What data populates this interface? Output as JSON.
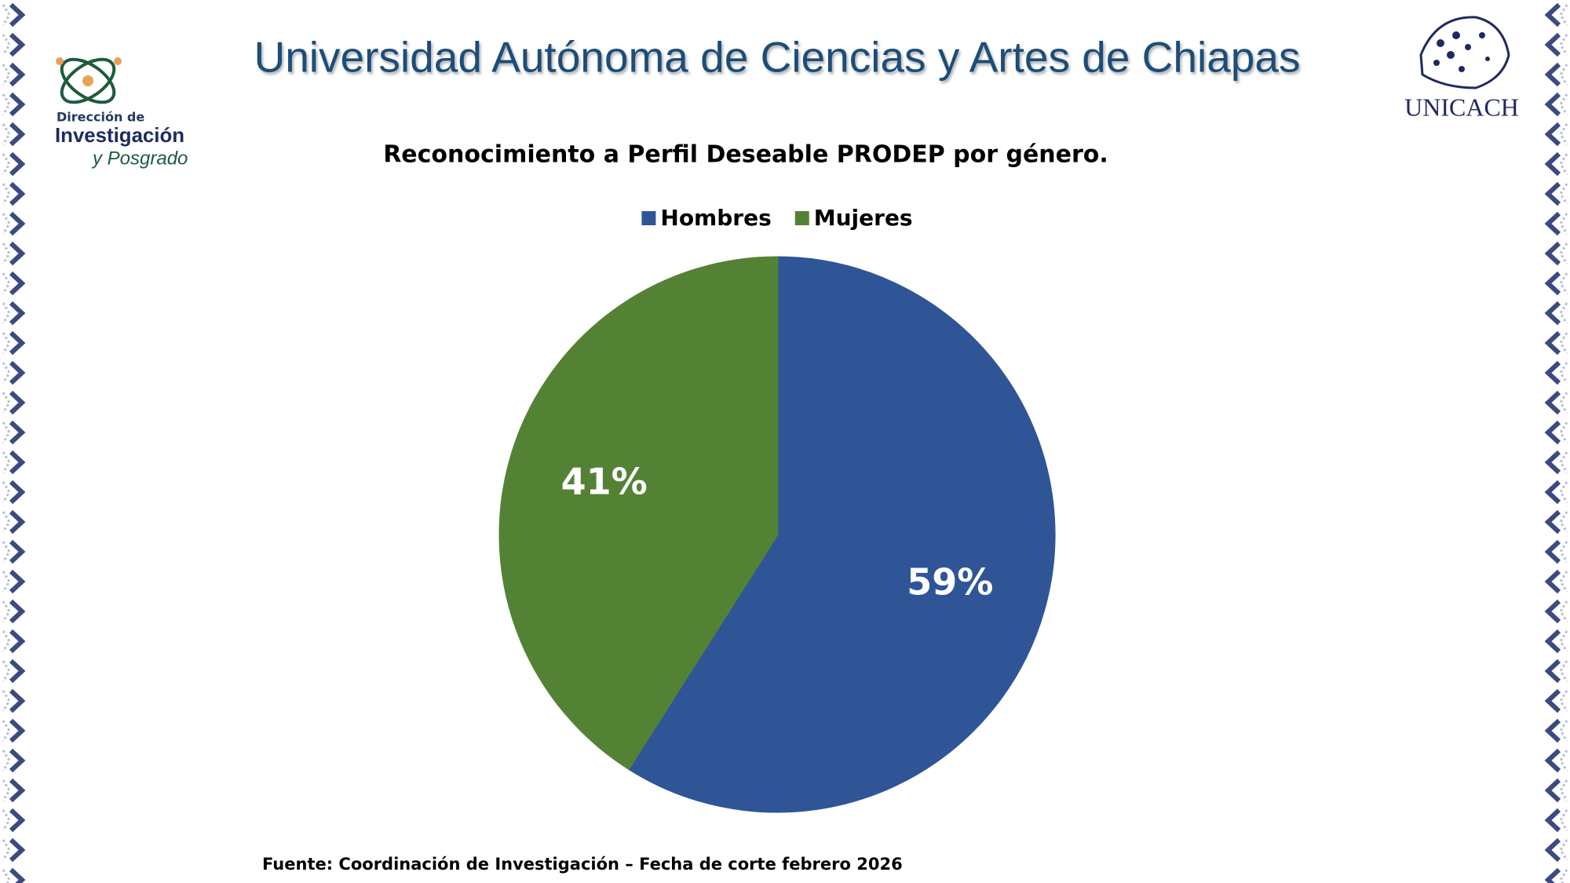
{
  "header": {
    "title": "Universidad Autónoma de Ciencias y Artes de Chiapas",
    "left_logo": {
      "line1": "Dirección de",
      "line2": "Investigación",
      "line3": "y Posgrado"
    },
    "right_logo": "UNICACH"
  },
  "chart_data": {
    "type": "pie",
    "title": "Reconocimiento a Perfil Deseable PRODEP por género.",
    "categories": [
      "Hombres",
      "Mujeres"
    ],
    "values": [
      59,
      41
    ],
    "value_labels": [
      "59%",
      "41%"
    ],
    "colors": [
      "#2f5597",
      "#548235"
    ],
    "legend": "top",
    "source": "Fuente: Coordinación de Investigación – Fecha de corte febrero 2026"
  }
}
